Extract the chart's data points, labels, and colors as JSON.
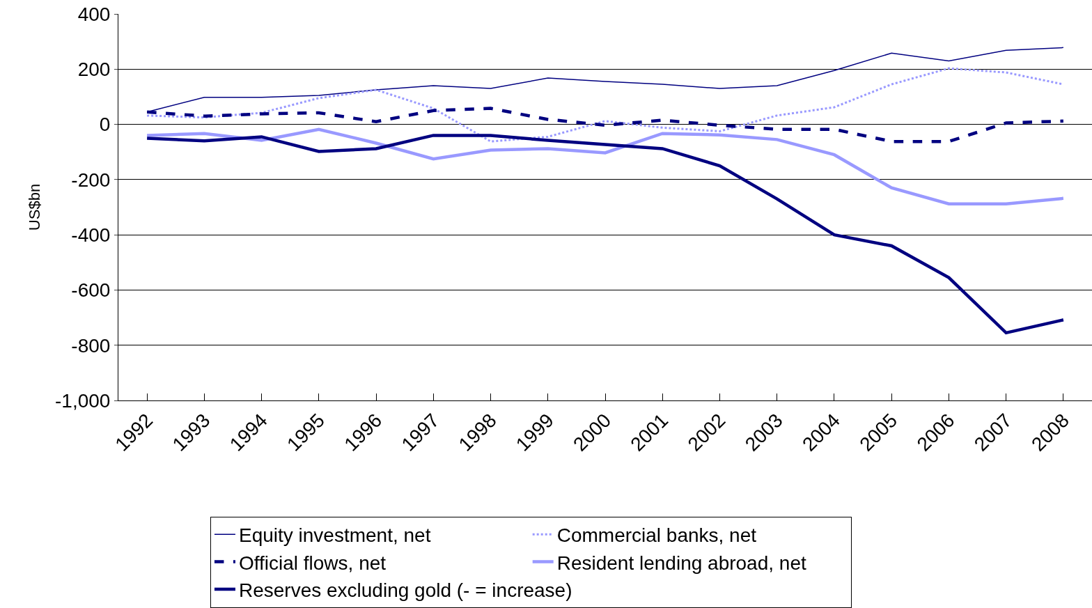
{
  "chart_data": {
    "type": "line",
    "ylabel": "US$bn",
    "categories": [
      "1992",
      "1993",
      "1994",
      "1995",
      "1996",
      "1997",
      "1998",
      "1999",
      "2000",
      "2001",
      "2002",
      "2003",
      "2004",
      "2005",
      "2006",
      "2007",
      "2008"
    ],
    "series": [
      {
        "name": "Equity investment, net",
        "color": "#000080",
        "line_style": "solid",
        "values": [
          45,
          98,
          98,
          105,
          125,
          140,
          130,
          168,
          155,
          145,
          130,
          140,
          195,
          258,
          230,
          268,
          278
        ]
      },
      {
        "name": "Commercial banks, net",
        "color": "#9999ff",
        "line_style": "dotted",
        "values": [
          32,
          25,
          42,
          95,
          125,
          58,
          -62,
          -45,
          12,
          -12,
          -25,
          32,
          62,
          145,
          203,
          188,
          145
        ]
      },
      {
        "name": "Official flows, net",
        "color": "#000080",
        "line_style": "dashed",
        "values": [
          45,
          30,
          38,
          42,
          10,
          50,
          58,
          18,
          -3,
          15,
          -3,
          -18,
          -18,
          -62,
          -62,
          5,
          12
        ]
      },
      {
        "name": "Resident lending abroad, net",
        "color": "#9999ff",
        "line_style": "solid",
        "values": [
          -40,
          -33,
          -58,
          -18,
          -68,
          -125,
          -93,
          -88,
          -103,
          -33,
          -38,
          -55,
          -110,
          -230,
          -288,
          -288,
          -268
        ]
      },
      {
        "name": "Reserves excluding gold (- = increase)",
        "color": "#000080",
        "line_style": "solid",
        "values": [
          -50,
          -60,
          -45,
          -98,
          -88,
          -40,
          -40,
          -58,
          -73,
          -88,
          -150,
          -270,
          -400,
          -440,
          -555,
          -755,
          -708
        ]
      }
    ],
    "ylim": [
      -1000,
      400
    ],
    "yticks": [
      {
        "value": -1000,
        "label": "-1,000"
      },
      -800,
      -600,
      -400,
      -200,
      0,
      200,
      400
    ],
    "grid": "y",
    "legend": "bottom",
    "marker": "none"
  }
}
